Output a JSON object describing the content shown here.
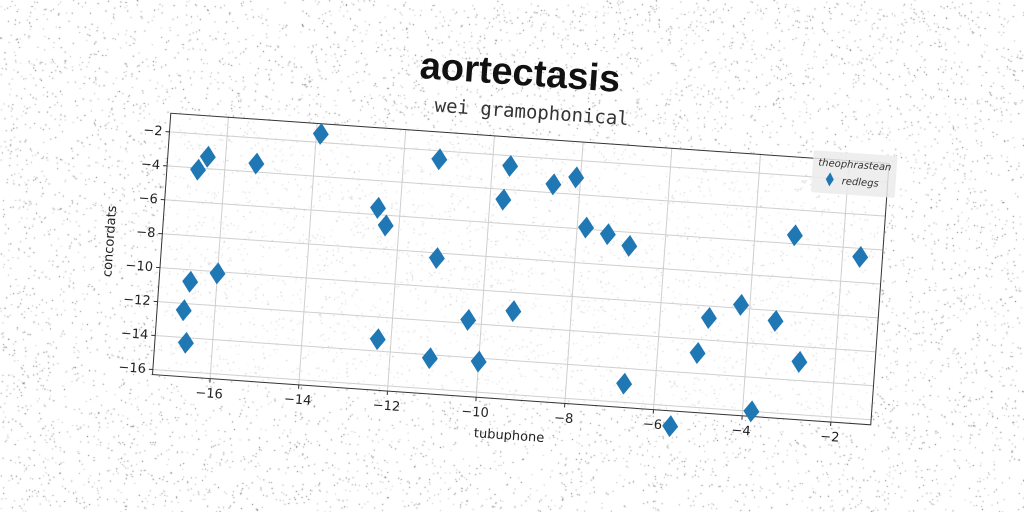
{
  "title": "aortectasis",
  "chart_data": {
    "type": "scatter",
    "title": "wei gramophonical",
    "xlabel": "tubuphone",
    "ylabel": "concordats",
    "xlim": [
      -17.3,
      -1.1
    ],
    "ylim": [
      -16.3,
      -0.9
    ],
    "xticks": [
      -16,
      -14,
      -12,
      -10,
      -8,
      -6,
      -4,
      -2
    ],
    "yticks": [
      -16,
      -14,
      -12,
      -10,
      -8,
      -6,
      -4,
      -2
    ],
    "grid": true,
    "legend": {
      "title": "theophrastean",
      "placement": "top-right"
    },
    "series": [
      {
        "name": "redlegs",
        "color": "#1f77b4",
        "marker": "diamond",
        "points": [
          [
            -16.7,
            -12.4
          ],
          [
            -16.6,
            -14.3
          ],
          [
            -16.6,
            -10.7
          ],
          [
            -16.6,
            -4.1
          ],
          [
            -16.4,
            -3.3
          ],
          [
            -16.0,
            -10.1
          ],
          [
            -15.3,
            -3.5
          ],
          [
            -13.9,
            -1.5
          ],
          [
            -12.5,
            -5.6
          ],
          [
            -12.3,
            -6.6
          ],
          [
            -12.3,
            -13.3
          ],
          [
            -11.2,
            -2.5
          ],
          [
            -11.1,
            -8.3
          ],
          [
            -11.1,
            -14.2
          ],
          [
            -10.3,
            -11.8
          ],
          [
            -10.0,
            -14.2
          ],
          [
            -9.7,
            -4.6
          ],
          [
            -9.6,
            -2.6
          ],
          [
            -9.3,
            -11.1
          ],
          [
            -8.6,
            -3.5
          ],
          [
            -8.1,
            -3.0
          ],
          [
            -7.8,
            -5.9
          ],
          [
            -7.3,
            -6.2
          ],
          [
            -6.8,
            -6.8
          ],
          [
            -6.7,
            -14.9
          ],
          [
            -5.6,
            -17.2
          ],
          [
            -5.1,
            -12.8
          ],
          [
            -4.9,
            -10.7
          ],
          [
            -4.2,
            -9.8
          ],
          [
            -3.8,
            -16.0
          ],
          [
            -3.4,
            -10.6
          ],
          [
            -3.1,
            -5.5
          ],
          [
            -2.8,
            -12.9
          ],
          [
            -1.6,
            -6.5
          ]
        ]
      }
    ]
  },
  "colors": {
    "marker": "#1f77b4",
    "grid": "#cfcfcf",
    "axis": "#333333"
  }
}
